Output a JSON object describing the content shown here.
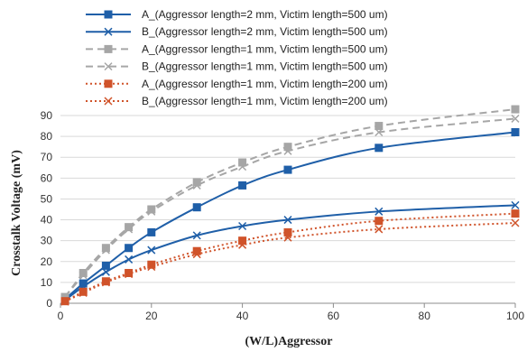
{
  "chart_data": {
    "type": "line",
    "title": "",
    "xlabel": "(W/L)Aggressor",
    "ylabel": "Crosstalk Voltage (mV)",
    "xlim": [
      0,
      100
    ],
    "ylim": [
      0,
      90
    ],
    "xticks": [
      0,
      20,
      40,
      60,
      80,
      100
    ],
    "yticks": [
      0,
      10,
      20,
      30,
      40,
      50,
      60,
      70,
      80,
      90
    ],
    "grid": "horizontal",
    "legend_position": "top",
    "series": [
      {
        "name": "A_(Aggressor length=2 mm, Victim length=500 um)",
        "color": "#1f5fa8",
        "line": "solid",
        "marker": "square",
        "x": [
          1,
          5,
          10,
          15,
          20,
          30,
          40,
          50,
          70,
          100
        ],
        "y": [
          2,
          9.5,
          18,
          26.5,
          34,
          46,
          56.5,
          64,
          74.5,
          82
        ]
      },
      {
        "name": "B_(Aggressor length=2 mm, Victim length=500 um)",
        "color": "#1f5fa8",
        "line": "solid",
        "marker": "x",
        "x": [
          1,
          5,
          10,
          15,
          20,
          30,
          40,
          50,
          70,
          100
        ],
        "y": [
          1.5,
          8,
          15,
          21,
          25.5,
          32.5,
          37,
          40,
          44,
          47
        ]
      },
      {
        "name": "A_(Aggressor length=1 mm, Victim length=500 um)",
        "color": "#a6a6a6",
        "line": "dashed",
        "marker": "square",
        "x": [
          1,
          5,
          10,
          15,
          20,
          30,
          40,
          50,
          70,
          100
        ],
        "y": [
          3,
          14.5,
          26.5,
          36.5,
          45,
          58,
          67.5,
          75,
          85,
          93
        ]
      },
      {
        "name": "B_(Aggressor length=1 mm, Victim length=500 um)",
        "color": "#a6a6a6",
        "line": "dashed",
        "marker": "x",
        "x": [
          1,
          5,
          10,
          15,
          20,
          30,
          40,
          50,
          70,
          100
        ],
        "y": [
          3,
          13.5,
          25.5,
          35.5,
          44,
          56.5,
          65.5,
          73,
          82,
          88.5
        ]
      },
      {
        "name": "A_(Aggressor length=1 mm, Victim length=200 um)",
        "color": "#d0532a",
        "line": "dotted",
        "marker": "square",
        "x": [
          1,
          5,
          10,
          15,
          20,
          30,
          40,
          50,
          70,
          100
        ],
        "y": [
          1,
          5.5,
          10.5,
          14.5,
          18.5,
          25,
          30,
          34,
          39.5,
          43
        ]
      },
      {
        "name": "B_(Aggressor length=1 mm, Victim length=200 um)",
        "color": "#d0532a",
        "line": "dotted",
        "marker": "x",
        "x": [
          1,
          5,
          10,
          15,
          20,
          30,
          40,
          50,
          70,
          100
        ],
        "y": [
          0.8,
          5,
          10,
          14,
          17.5,
          23.5,
          28,
          31.5,
          35.5,
          38.5
        ]
      }
    ]
  }
}
